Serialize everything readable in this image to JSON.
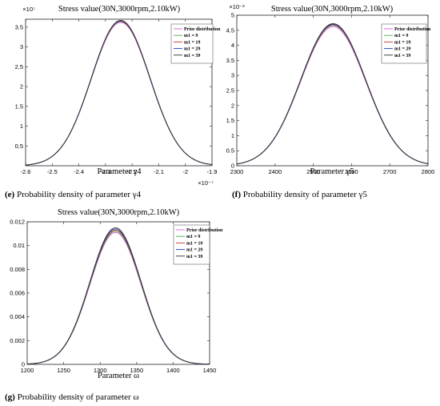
{
  "chart_data": [
    {
      "type": "line",
      "title": "Stress value(30N,3000rpm,2.10kW)",
      "xlabel": "Parameter γ4",
      "ylabel": "",
      "x_exponent": "×10⁻⁷",
      "y_exponent": "×10⁷",
      "xlim": [
        -2.6,
        -1.9
      ],
      "ylim": [
        0,
        3.7
      ],
      "xticks": [
        "-2.6",
        "-2.5",
        "-2.4",
        "-2.3",
        "-2.2",
        "-2.1",
        "-2",
        "-1.9"
      ],
      "yticks": [
        "0.5",
        "1",
        "1.5",
        "2",
        "2.5",
        "3",
        "3.5"
      ],
      "legend_position": "top-right",
      "caption_tag": "(e)",
      "caption_text": "Probability density of parameter γ4",
      "series": [
        {
          "name": "Prior distribution",
          "mean": -2.243,
          "sd": 0.11,
          "peak": 3.62,
          "color": "#e05ce0"
        },
        {
          "name": "m1 = 9",
          "mean": -2.243,
          "sd": 0.11,
          "peak": 3.64,
          "color": "#4caf50"
        },
        {
          "name": "m1 = 19",
          "mean": -2.243,
          "sd": 0.11,
          "peak": 3.65,
          "color": "#c0392b"
        },
        {
          "name": "m1 = 29",
          "mean": -2.243,
          "sd": 0.11,
          "peak": 3.66,
          "color": "#1f3fbf"
        },
        {
          "name": "m1 = 39",
          "mean": -2.243,
          "sd": 0.11,
          "peak": 3.67,
          "color": "#303030"
        }
      ]
    },
    {
      "type": "line",
      "title": "Stress value(30N,3000rpm,2.10kW)",
      "xlabel": "Parameter γ5",
      "ylabel": "",
      "y_exponent": "×10⁻³",
      "xlim": [
        2300,
        2800
      ],
      "ylim": [
        0,
        5
      ],
      "xticks": [
        "2300",
        "2400",
        "2500",
        "2600",
        "2700",
        "2800"
      ],
      "yticks": [
        "0",
        "0.5",
        "1",
        "1.5",
        "2",
        "2.5",
        "3",
        "3.5",
        "4",
        "4.5",
        "5"
      ],
      "legend_position": "top-right",
      "caption_tag": "(f)",
      "caption_text": "Probability density of parameter γ5",
      "series": [
        {
          "name": "Prior distribution",
          "mean": 2552,
          "sd": 85,
          "peak": 4.62,
          "color": "#e05ce0"
        },
        {
          "name": "m1 = 9",
          "mean": 2552,
          "sd": 85,
          "peak": 4.66,
          "color": "#4caf50"
        },
        {
          "name": "m1 = 19",
          "mean": 2552,
          "sd": 85,
          "peak": 4.68,
          "color": "#c0392b"
        },
        {
          "name": "m1 = 29",
          "mean": 2552,
          "sd": 85,
          "peak": 4.7,
          "color": "#1f3fbf"
        },
        {
          "name": "m1 = 39",
          "mean": 2552,
          "sd": 85,
          "peak": 4.72,
          "color": "#303030"
        }
      ]
    },
    {
      "type": "line",
      "title": "Stress value(30N,3000rpm,2.10kW)",
      "xlabel": "Parameter ω",
      "ylabel": "",
      "xlim": [
        1200,
        1450
      ],
      "ylim": [
        0,
        0.012
      ],
      "xticks": [
        "1200",
        "1250",
        "1300",
        "1350",
        "1400",
        "1450"
      ],
      "yticks": [
        "0",
        "0.002",
        "0.004",
        "0.006",
        "0.008",
        "0.01",
        "0.012"
      ],
      "legend_position": "top-right",
      "caption_tag": "(g)",
      "caption_text": "Probability density of parameter ω",
      "series": [
        {
          "name": "Prior distribution",
          "mean": 1321,
          "sd": 35,
          "peak": 0.0111,
          "color": "#e05ce0"
        },
        {
          "name": "m1 = 9",
          "mean": 1321,
          "sd": 35,
          "peak": 0.0112,
          "color": "#4caf50"
        },
        {
          "name": "m1 = 19",
          "mean": 1321,
          "sd": 35,
          "peak": 0.0113,
          "color": "#c0392b"
        },
        {
          "name": "m1 = 29",
          "mean": 1321,
          "sd": 35,
          "peak": 0.0114,
          "color": "#1f3fbf"
        },
        {
          "name": "m1 = 39",
          "mean": 1321,
          "sd": 35,
          "peak": 0.0115,
          "color": "#303030"
        }
      ]
    }
  ]
}
